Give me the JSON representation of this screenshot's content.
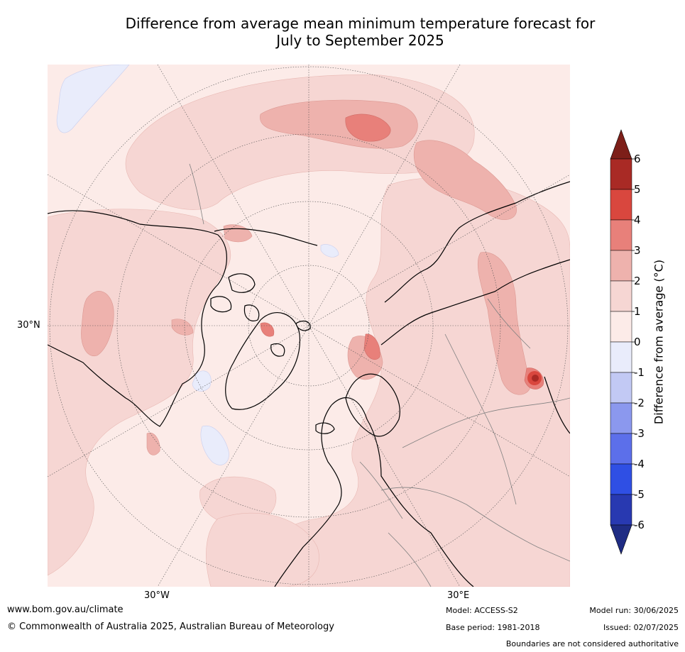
{
  "title_line1": "Difference from average mean minimum temperature forecast for",
  "title_line2": "July to September 2025",
  "map": {
    "latitude_label": "30°N",
    "longitude_labels": [
      "30°W",
      "30°E"
    ],
    "background_color": "#fcebe8",
    "land_outline_color": "#000000",
    "border_color": "#808080"
  },
  "colorbar": {
    "label": "Difference from average (°C)",
    "tick_labels": [
      "6",
      "5",
      "4",
      "3",
      "2",
      "1",
      "0",
      "-1",
      "-2",
      "-3",
      "-4",
      "-5",
      "-6"
    ],
    "colors": [
      "#a92a25",
      "#d9473e",
      "#e8807a",
      "#eeb2ad",
      "#f6d6d3",
      "#fcebe8",
      "#e9ecfb",
      "#c2c9f4",
      "#8b98ee",
      "#5c6fea",
      "#2f4fe4",
      "#2839b1"
    ],
    "over_color": "#7d1f19",
    "under_color": "#1f2c84"
  },
  "footer": {
    "website": "www.bom.gov.au/climate",
    "copyright": "© Commonwealth of Australia 2025, Australian Bureau of Meteorology",
    "model": "Model: ACCESS-S2",
    "base_period": "Base period: 1981-2018",
    "model_run": "Model run: 30/06/2025",
    "issued": "Issued: 02/07/2025",
    "disclaimer": "Boundaries are not considered authoritative"
  }
}
